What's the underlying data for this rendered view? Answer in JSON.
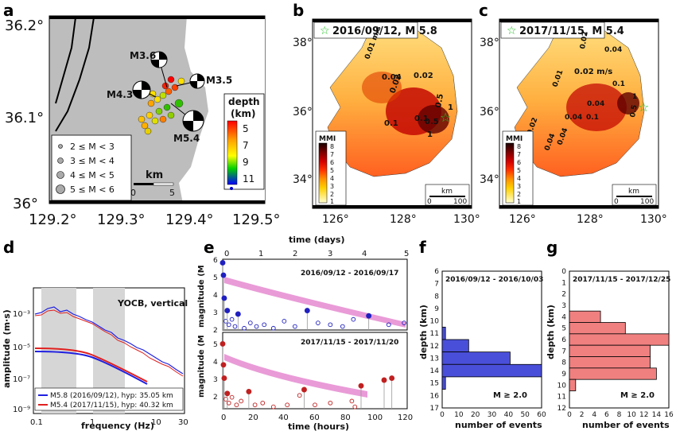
{
  "panels": {
    "a": {
      "label": "a",
      "lon_ticks": [
        "129.2°",
        "129.3°",
        "129.4°",
        "129.5°"
      ],
      "lat_ticks": [
        "36.2°",
        "36.1°",
        "36°"
      ],
      "events": [
        "M3.6",
        "M3.5",
        "M4.3",
        "M5.4"
      ],
      "magnitude_legend": [
        "2 ≤ M < 3",
        "3 ≤ M < 4",
        "4 ≤ M < 5",
        "5 ≤ M < 6"
      ],
      "scale_title": "km",
      "scale_ticks": [
        "0",
        "5"
      ],
      "depth_title": [
        "depth",
        "(km)"
      ],
      "depth_ticks": [
        "5",
        "7",
        "9",
        "11"
      ]
    },
    "b": {
      "label": "b",
      "title": "2016/09/12, M 5.8",
      "lat_ticks": [
        "38°",
        "36°",
        "34°"
      ],
      "lon_ticks": [
        "126°",
        "128°",
        "130°"
      ],
      "contours": [
        "0.01 m/s",
        "0.04",
        "0.02",
        "0.02",
        "0.1",
        "0.5",
        "1",
        "0.5",
        "0.1",
        "1"
      ],
      "mmi_title": "MMI",
      "mmi_ticks": [
        "8",
        "7",
        "6",
        "5",
        "4",
        "3",
        "2",
        "1"
      ],
      "scale_title": "km",
      "scale_ticks": [
        "0",
        "100"
      ]
    },
    "c": {
      "label": "c",
      "title": "2017/11/15, M 5.4",
      "lat_ticks": [
        "38°",
        "36°",
        "34°"
      ],
      "lon_ticks": [
        "126°",
        "128°",
        "130°"
      ],
      "contours": [
        "0.02",
        "0.04",
        "0.02 m/s",
        "0.01",
        "0.04",
        "0.1",
        "0.04",
        "0.1",
        "0.04",
        "0.04",
        "0.02",
        "1",
        "0.5"
      ],
      "mmi_title": "MMI",
      "mmi_ticks": [
        "8",
        "7",
        "6",
        "5",
        "4",
        "3",
        "2",
        "1"
      ],
      "scale_title": "km",
      "scale_ticks": [
        "0",
        "100"
      ]
    },
    "d": {
      "label": "d",
      "station": "YOCB, vertical",
      "ylabel": "amplitude (m·s)",
      "xlabel": "frequency (Hz)",
      "yticks": [
        "10⁻³",
        "10⁻⁵",
        "10⁻⁷",
        "10⁻⁹"
      ],
      "xticks": [
        "0.1",
        "1",
        "10",
        "30"
      ],
      "legend": [
        "M5.8 (2016/09/12), hyp: 35.05 km",
        "M5.4 (2017/11/15), hyp: 40.32 km"
      ]
    },
    "e": {
      "label": "e",
      "top_axis_label": "time (days)",
      "top_ticks": [
        "0",
        "1",
        "2",
        "3",
        "4",
        "5"
      ],
      "ylabel_top": "magnitude (M",
      "ylabel_sub": "L",
      "yticks": [
        "6",
        "5",
        "4",
        "3",
        "2"
      ],
      "date_range_1": "2016/09/12 - 2016/09/17",
      "date_range_2": "2017/11/15 - 2017/11/20",
      "xlabel": "time (hours)",
      "xticks": [
        "0",
        "20",
        "40",
        "60",
        "80",
        "100",
        "120"
      ]
    },
    "f": {
      "label": "f",
      "date_range": "2016/09/12 - 2016/10/03",
      "ylabel": "depth (km)",
      "xlabel": "number of events",
      "xticks": [
        "0",
        "10",
        "20",
        "30",
        "40",
        "50",
        "60"
      ],
      "yticks": [
        "6",
        "7",
        "8",
        "9",
        "10",
        "11",
        "12",
        "13",
        "14",
        "15",
        "16",
        "17"
      ],
      "threshold": "M ≥ 2.0"
    },
    "g": {
      "label": "g",
      "date_range": "2017/11/15 - 2017/12/25",
      "ylabel": "depth (km)",
      "xlabel": "number of events",
      "xticks": [
        "0",
        "2",
        "4",
        "6",
        "8",
        "10",
        "12",
        "14",
        "16"
      ],
      "yticks": [
        "0",
        "1",
        "2",
        "3",
        "4",
        "5",
        "6",
        "7",
        "8",
        "9",
        "10",
        "11",
        "12"
      ],
      "threshold": "M ≥ 2.0"
    }
  },
  "chart_data": [
    {
      "type": "bar",
      "panel": "f",
      "orientation": "horizontal",
      "xlabel": "number of events",
      "ylabel": "depth (km)",
      "categories": [
        11,
        12,
        13,
        14,
        15,
        16
      ],
      "values": [
        2,
        16,
        41,
        60,
        2,
        0
      ],
      "xlim": [
        0,
        60
      ],
      "ylim": [
        6,
        17
      ],
      "color": "#4a4fd9"
    },
    {
      "type": "bar",
      "panel": "g",
      "orientation": "horizontal",
      "xlabel": "number of events",
      "ylabel": "depth (km)",
      "categories": [
        4,
        5,
        6,
        7,
        8,
        9,
        10
      ],
      "values": [
        5,
        9,
        16,
        13,
        13,
        14,
        1
      ],
      "xlim": [
        0,
        16
      ],
      "ylim": [
        0,
        12
      ],
      "color": "#f08080"
    },
    {
      "type": "scatter",
      "panel": "e-top",
      "xlabel": "time (hours)",
      "xlim": [
        0,
        120
      ],
      "ylim": [
        2,
        6
      ],
      "series": [
        {
          "x": [
            0,
            0.5,
            1,
            2,
            3,
            4,
            6,
            8,
            10,
            14,
            18,
            22,
            27,
            33,
            40,
            47,
            55,
            62,
            70,
            78,
            85,
            95,
            108,
            118
          ],
          "y": [
            5.8,
            5.1,
            3.8,
            2.5,
            3.1,
            2.3,
            2.6,
            2.2,
            2.9,
            2.1,
            2.4,
            2.2,
            2.3,
            2.1,
            2.5,
            2.2,
            3.1,
            2.4,
            2.3,
            2.2,
            2.6,
            2.8,
            2.3,
            2.4
          ]
        }
      ]
    },
    {
      "type": "scatter",
      "panel": "e-bottom",
      "xlabel": "time (hours)",
      "xlim": [
        0,
        120
      ],
      "ylim": [
        2,
        6
      ],
      "series": [
        {
          "x": [
            0,
            0.5,
            1,
            2,
            3,
            4,
            6,
            9,
            12,
            17,
            21,
            26,
            33,
            42,
            50,
            53,
            60,
            70,
            84,
            86,
            90,
            105,
            110
          ],
          "y": [
            5.4,
            4.3,
            3.6,
            2.5,
            2.8,
            2.3,
            2.6,
            2.2,
            2.4,
            2.9,
            2.2,
            2.3,
            2.1,
            2.2,
            2.7,
            3.0,
            2.2,
            2.3,
            2.4,
            2.1,
            3.2,
            3.5,
            3.6
          ]
        }
      ]
    }
  ]
}
